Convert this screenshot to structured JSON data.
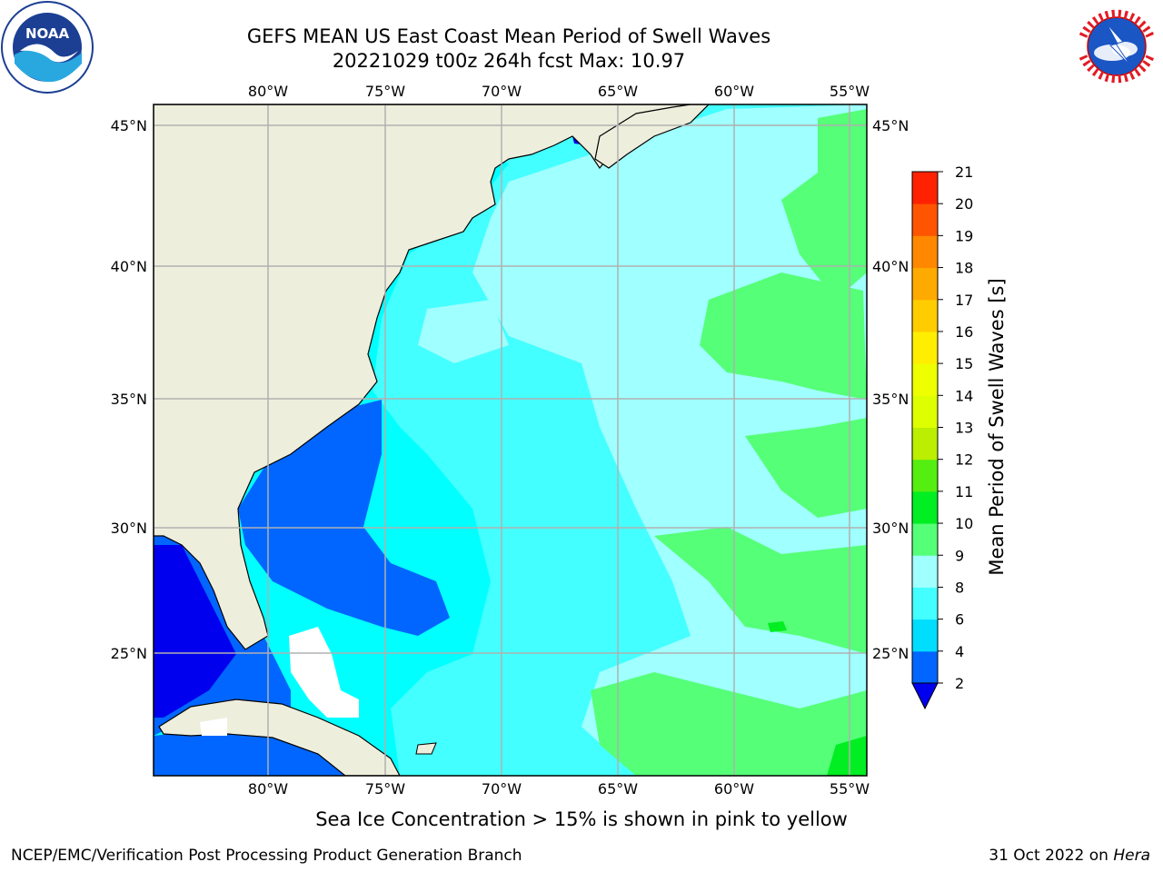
{
  "header": {
    "title_line1": "GEFS MEAN US East Coast Mean Period of Swell Waves",
    "title_line2": "20221029 t00z 264h fcst   Max: 10.97"
  },
  "logos": {
    "left": "noaa-logo",
    "right": "nws-logo"
  },
  "map": {
    "lon_labels": [
      "80°W",
      "75°W",
      "70°W",
      "65°W",
      "60°W",
      "55°W"
    ],
    "lat_labels": [
      "45°N",
      "40°N",
      "35°N",
      "30°N",
      "25°N"
    ],
    "colors": {
      "land": "#eeeedd",
      "grid": "#b0b0b0",
      "band_2_4": "#0066ff",
      "band_below_2": "#0000ee",
      "band_4_6": "#00ffff",
      "band_6_8": "#44ffff",
      "band_8_9": "#a0ffff",
      "band_9_10": "#55ff77"
    }
  },
  "colorbar": {
    "label": "Mean Period of Swell Waves [s]",
    "ticks": [
      "2",
      "4",
      "6",
      "8",
      "9",
      "10",
      "11",
      "12",
      "13",
      "14",
      "15",
      "16",
      "17",
      "18",
      "19",
      "20",
      "21"
    ],
    "colors": [
      "#0066ff",
      "#00ddff",
      "#44ffff",
      "#a0ffff",
      "#55ff77",
      "#00ee22",
      "#55ee11",
      "#bbee00",
      "#ddff00",
      "#eeff00",
      "#ffee00",
      "#ffcc00",
      "#ffaa00",
      "#ff8800",
      "#ff5500",
      "#ff2200",
      "#ff0000"
    ],
    "extend_color": "#0000ee"
  },
  "note": "Sea Ice Concentration > 15% is shown in pink to yellow",
  "footer": {
    "left": "NCEP/EMC/Verification Post Processing Product Generation Branch",
    "right_date": "31 Oct 2022 on ",
    "right_machine": "Hera"
  }
}
